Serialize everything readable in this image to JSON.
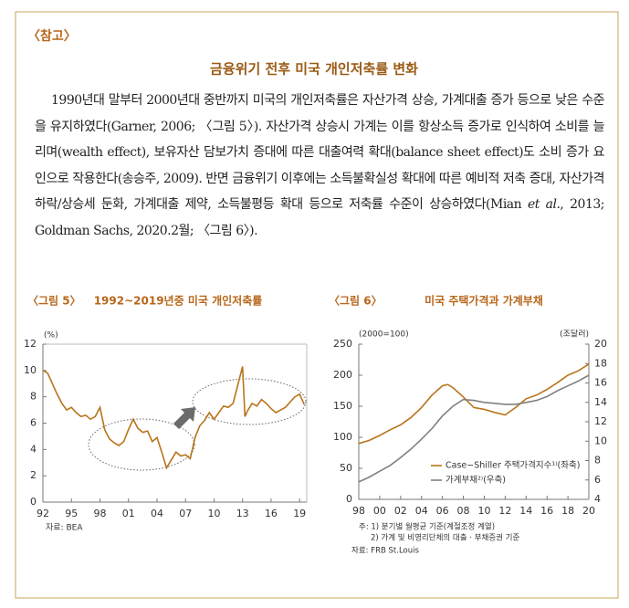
{
  "header": "〈참고〉",
  "title": "금융위기 전후 미국 개인저축률 변화",
  "paragraph": [
    "1990년대 말부터 2000년대 중반까지 미국의 개인저축률은 자산가격 상승, 가계대출 증가 등으로 낮은 수준을 유지하였다(Garner, 2006; 〈그림 5〉). 자산가격 상승시 가계는 이를 항상소득 증가로 인식하여 소비를 늘리며(wealth effect), 보유자산 담보가치 증대에 따른 대출여력 확대(balance sheet effect)도 소비 증가 요인으로 작용한다(송승주, 2009). 반면 금융위기 이후에는 소득불확실성 확대에 따른 예비적 저축 증대, 자산가격 하락/상승세 둔화, 가계대출 제약, 소득불평등 확대 등으로 저축률 수준이 상승하였다(Mian ",
    "et al.",
    ", 2013; Goldman Sachs, 2020.2월; 〈그림 6〉)."
  ],
  "chart_data": [
    {
      "type": "line",
      "label": "〈그림 5〉",
      "title": "1992~2019년중 미국 개인저축률",
      "y_unit": "(%)",
      "source": "자료: BEA",
      "color": "#b8741a",
      "x": [
        1992,
        1992.5,
        1993,
        1993.5,
        1994,
        1994.5,
        1995,
        1995.5,
        1996,
        1996.5,
        1997,
        1997.5,
        1998,
        1998.5,
        1999,
        1999.5,
        2000,
        2000.5,
        2001,
        2001.5,
        2002,
        2002.5,
        2003,
        2003.5,
        2004,
        2004.5,
        2005,
        2005.5,
        2006,
        2006.5,
        2007,
        2007.5,
        2008,
        2008.5,
        2009,
        2009.5,
        2010,
        2010.5,
        2011,
        2011.5,
        2012,
        2012.5,
        2013,
        2013.25,
        2013.5,
        2014,
        2014.5,
        2015,
        2015.5,
        2016,
        2016.5,
        2017,
        2017.5,
        2018,
        2018.5,
        2019,
        2019.5
      ],
      "values": [
        10,
        9.8,
        9,
        8.2,
        7.5,
        7,
        7.2,
        6.8,
        6.5,
        6.6,
        6.3,
        6.5,
        7.2,
        5.5,
        4.8,
        4.5,
        4.3,
        4.6,
        5.5,
        6.3,
        5.6,
        5.3,
        5.4,
        4.6,
        4.9,
        3.8,
        2.6,
        3.2,
        3.8,
        3.5,
        3.6,
        3.3,
        4.9,
        5.8,
        6.2,
        6.8,
        6.3,
        6.8,
        7.3,
        7.2,
        7.5,
        8.9,
        10.3,
        6.5,
        6.9,
        7.5,
        7.3,
        7.8,
        7.5,
        7.1,
        6.8,
        7.0,
        7.2,
        7.6,
        8.0,
        8.2,
        7.4
      ],
      "xlim": [
        1992,
        2019.75
      ],
      "xticks": [
        {
          "value": 1992,
          "label": "92"
        },
        {
          "value": 1995,
          "label": "95"
        },
        {
          "value": 1998,
          "label": "98"
        },
        {
          "value": 2001,
          "label": "01"
        },
        {
          "value": 2004,
          "label": "04"
        },
        {
          "value": 2007,
          "label": "07"
        },
        {
          "value": 2010,
          "label": "10"
        },
        {
          "value": 2013,
          "label": "13"
        },
        {
          "value": 2016,
          "label": "16"
        },
        {
          "value": 2019,
          "label": "19"
        }
      ],
      "ylim": [
        0,
        12
      ],
      "yticks": [
        0,
        2,
        4,
        6,
        8,
        10,
        12
      ]
    },
    {
      "type": "line",
      "label": "〈그림 6〉",
      "title": "미국 주택가격과 가계부채",
      "y_unit": "(2000=100)",
      "y2_unit": "(조달러)",
      "notes": [
        "주: 1) 분기별 월평균 기준(계절조정 계열)",
        "2) 가계 및 비영리단체의 대출 · 부채증권 기준"
      ],
      "source": "자료: FRB St.Louis",
      "x": [
        1998,
        1999,
        2000,
        2001,
        2002,
        2003,
        2004,
        2005,
        2006,
        2006.5,
        2007,
        2008,
        2009,
        2010,
        2011,
        2012,
        2013,
        2014,
        2015,
        2016,
        2017,
        2018,
        2019,
        2020
      ],
      "series": [
        {
          "name": "Case−Shiller 주택가격지수¹⁾(좌축)",
          "color": "#b8741a",
          "values": [
            90,
            95,
            103,
            112,
            120,
            132,
            148,
            168,
            183,
            185,
            180,
            165,
            148,
            145,
            140,
            136,
            148,
            162,
            168,
            177,
            188,
            200,
            207,
            218
          ]
        },
        {
          "name": "가계부채²⁾(우축)",
          "color": "#808080",
          "axis": "y2",
          "values": [
            5.8,
            6.3,
            6.9,
            7.5,
            8.3,
            9.2,
            10.2,
            11.3,
            12.6,
            13.1,
            13.6,
            14.3,
            14.2,
            14.0,
            13.9,
            13.8,
            13.8,
            14.0,
            14.2,
            14.6,
            15.2,
            15.7,
            16.2,
            16.8
          ]
        }
      ],
      "xlim": [
        1998,
        2020
      ],
      "xticks": [
        {
          "value": 1998,
          "label": "98"
        },
        {
          "value": 2000,
          "label": "00"
        },
        {
          "value": 2002,
          "label": "02"
        },
        {
          "value": 2004,
          "label": "04"
        },
        {
          "value": 2006,
          "label": "06"
        },
        {
          "value": 2008,
          "label": "08"
        },
        {
          "value": 2010,
          "label": "10"
        },
        {
          "value": 2012,
          "label": "12"
        },
        {
          "value": 2014,
          "label": "14"
        },
        {
          "value": 2016,
          "label": "16"
        },
        {
          "value": 2018,
          "label": "18"
        },
        {
          "value": 2020,
          "label": "20"
        }
      ],
      "ylim": [
        0,
        250
      ],
      "yticks": [
        0,
        50,
        100,
        150,
        200,
        250
      ],
      "y2lim": [
        4,
        20
      ],
      "y2ticks": [
        4,
        6,
        8,
        10,
        12,
        14,
        16,
        18,
        20
      ]
    }
  ]
}
